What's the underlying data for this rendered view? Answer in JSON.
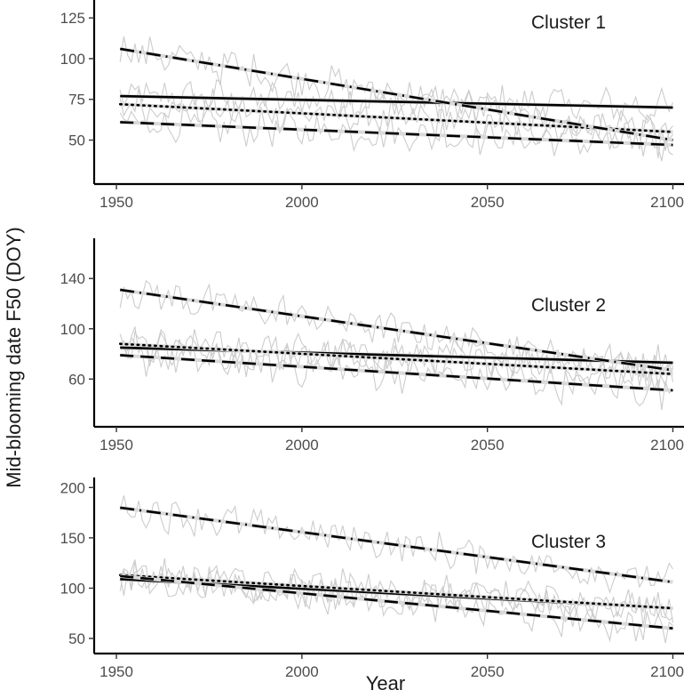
{
  "figure": {
    "ylabel": "Mid-blooming date F50 (DOY)",
    "xlabel": "Year"
  },
  "chart_data": [
    {
      "type": "line",
      "title": "Cluster 1",
      "xlim": [
        1944,
        2103
      ],
      "ylim": [
        23,
        136
      ],
      "xticks": [
        1950,
        2000,
        2050,
        2100
      ],
      "yticks": [
        50,
        75,
        100,
        125
      ],
      "grid": false,
      "series": [
        {
          "values": [
            [
              1951,
              77
            ],
            [
              2100,
              70
            ]
          ],
          "style": "solid"
        },
        {
          "values": [
            [
              1951,
              72
            ],
            [
              2100,
              55
            ]
          ],
          "style": "dotted"
        },
        {
          "values": [
            [
              1951,
              61
            ],
            [
              2100,
              47
            ]
          ],
          "style": "dashed"
        },
        {
          "values": [
            [
              1951,
              106
            ],
            [
              2100,
              50
            ]
          ],
          "style": "dash-dot"
        }
      ]
    },
    {
      "type": "line",
      "title": "Cluster 2",
      "xlim": [
        1944,
        2103
      ],
      "ylim": [
        22,
        172
      ],
      "xticks": [
        1950,
        2000,
        2050,
        2100
      ],
      "yticks": [
        60,
        100,
        140
      ],
      "grid": false,
      "series": [
        {
          "values": [
            [
              1951,
              85
            ],
            [
              2100,
              73
            ]
          ],
          "style": "solid"
        },
        {
          "values": [
            [
              1951,
              88
            ],
            [
              2100,
              64
            ]
          ],
          "style": "dotted"
        },
        {
          "values": [
            [
              1951,
              79
            ],
            [
              2100,
              51
            ]
          ],
          "style": "dashed"
        },
        {
          "values": [
            [
              1951,
              131
            ],
            [
              2100,
              67
            ]
          ],
          "style": "dash-dot"
        }
      ]
    },
    {
      "type": "line",
      "title": "Cluster 3",
      "xlim": [
        1944,
        2103
      ],
      "ylim": [
        35,
        210
      ],
      "xticks": [
        1950,
        2000,
        2050,
        2100
      ],
      "yticks": [
        50,
        100,
        150,
        200
      ],
      "grid": false,
      "series": [
        {
          "values": [
            [
              1951,
              109
            ],
            [
              2100,
              80
            ]
          ],
          "style": "solid"
        },
        {
          "values": [
            [
              1951,
              113
            ],
            [
              2100,
              80
            ]
          ],
          "style": "dotted"
        },
        {
          "values": [
            [
              1951,
              112
            ],
            [
              2100,
              60
            ]
          ],
          "style": "dashed"
        },
        {
          "values": [
            [
              1951,
              180
            ],
            [
              2100,
              106
            ]
          ],
          "style": "dash-dot"
        }
      ]
    }
  ]
}
